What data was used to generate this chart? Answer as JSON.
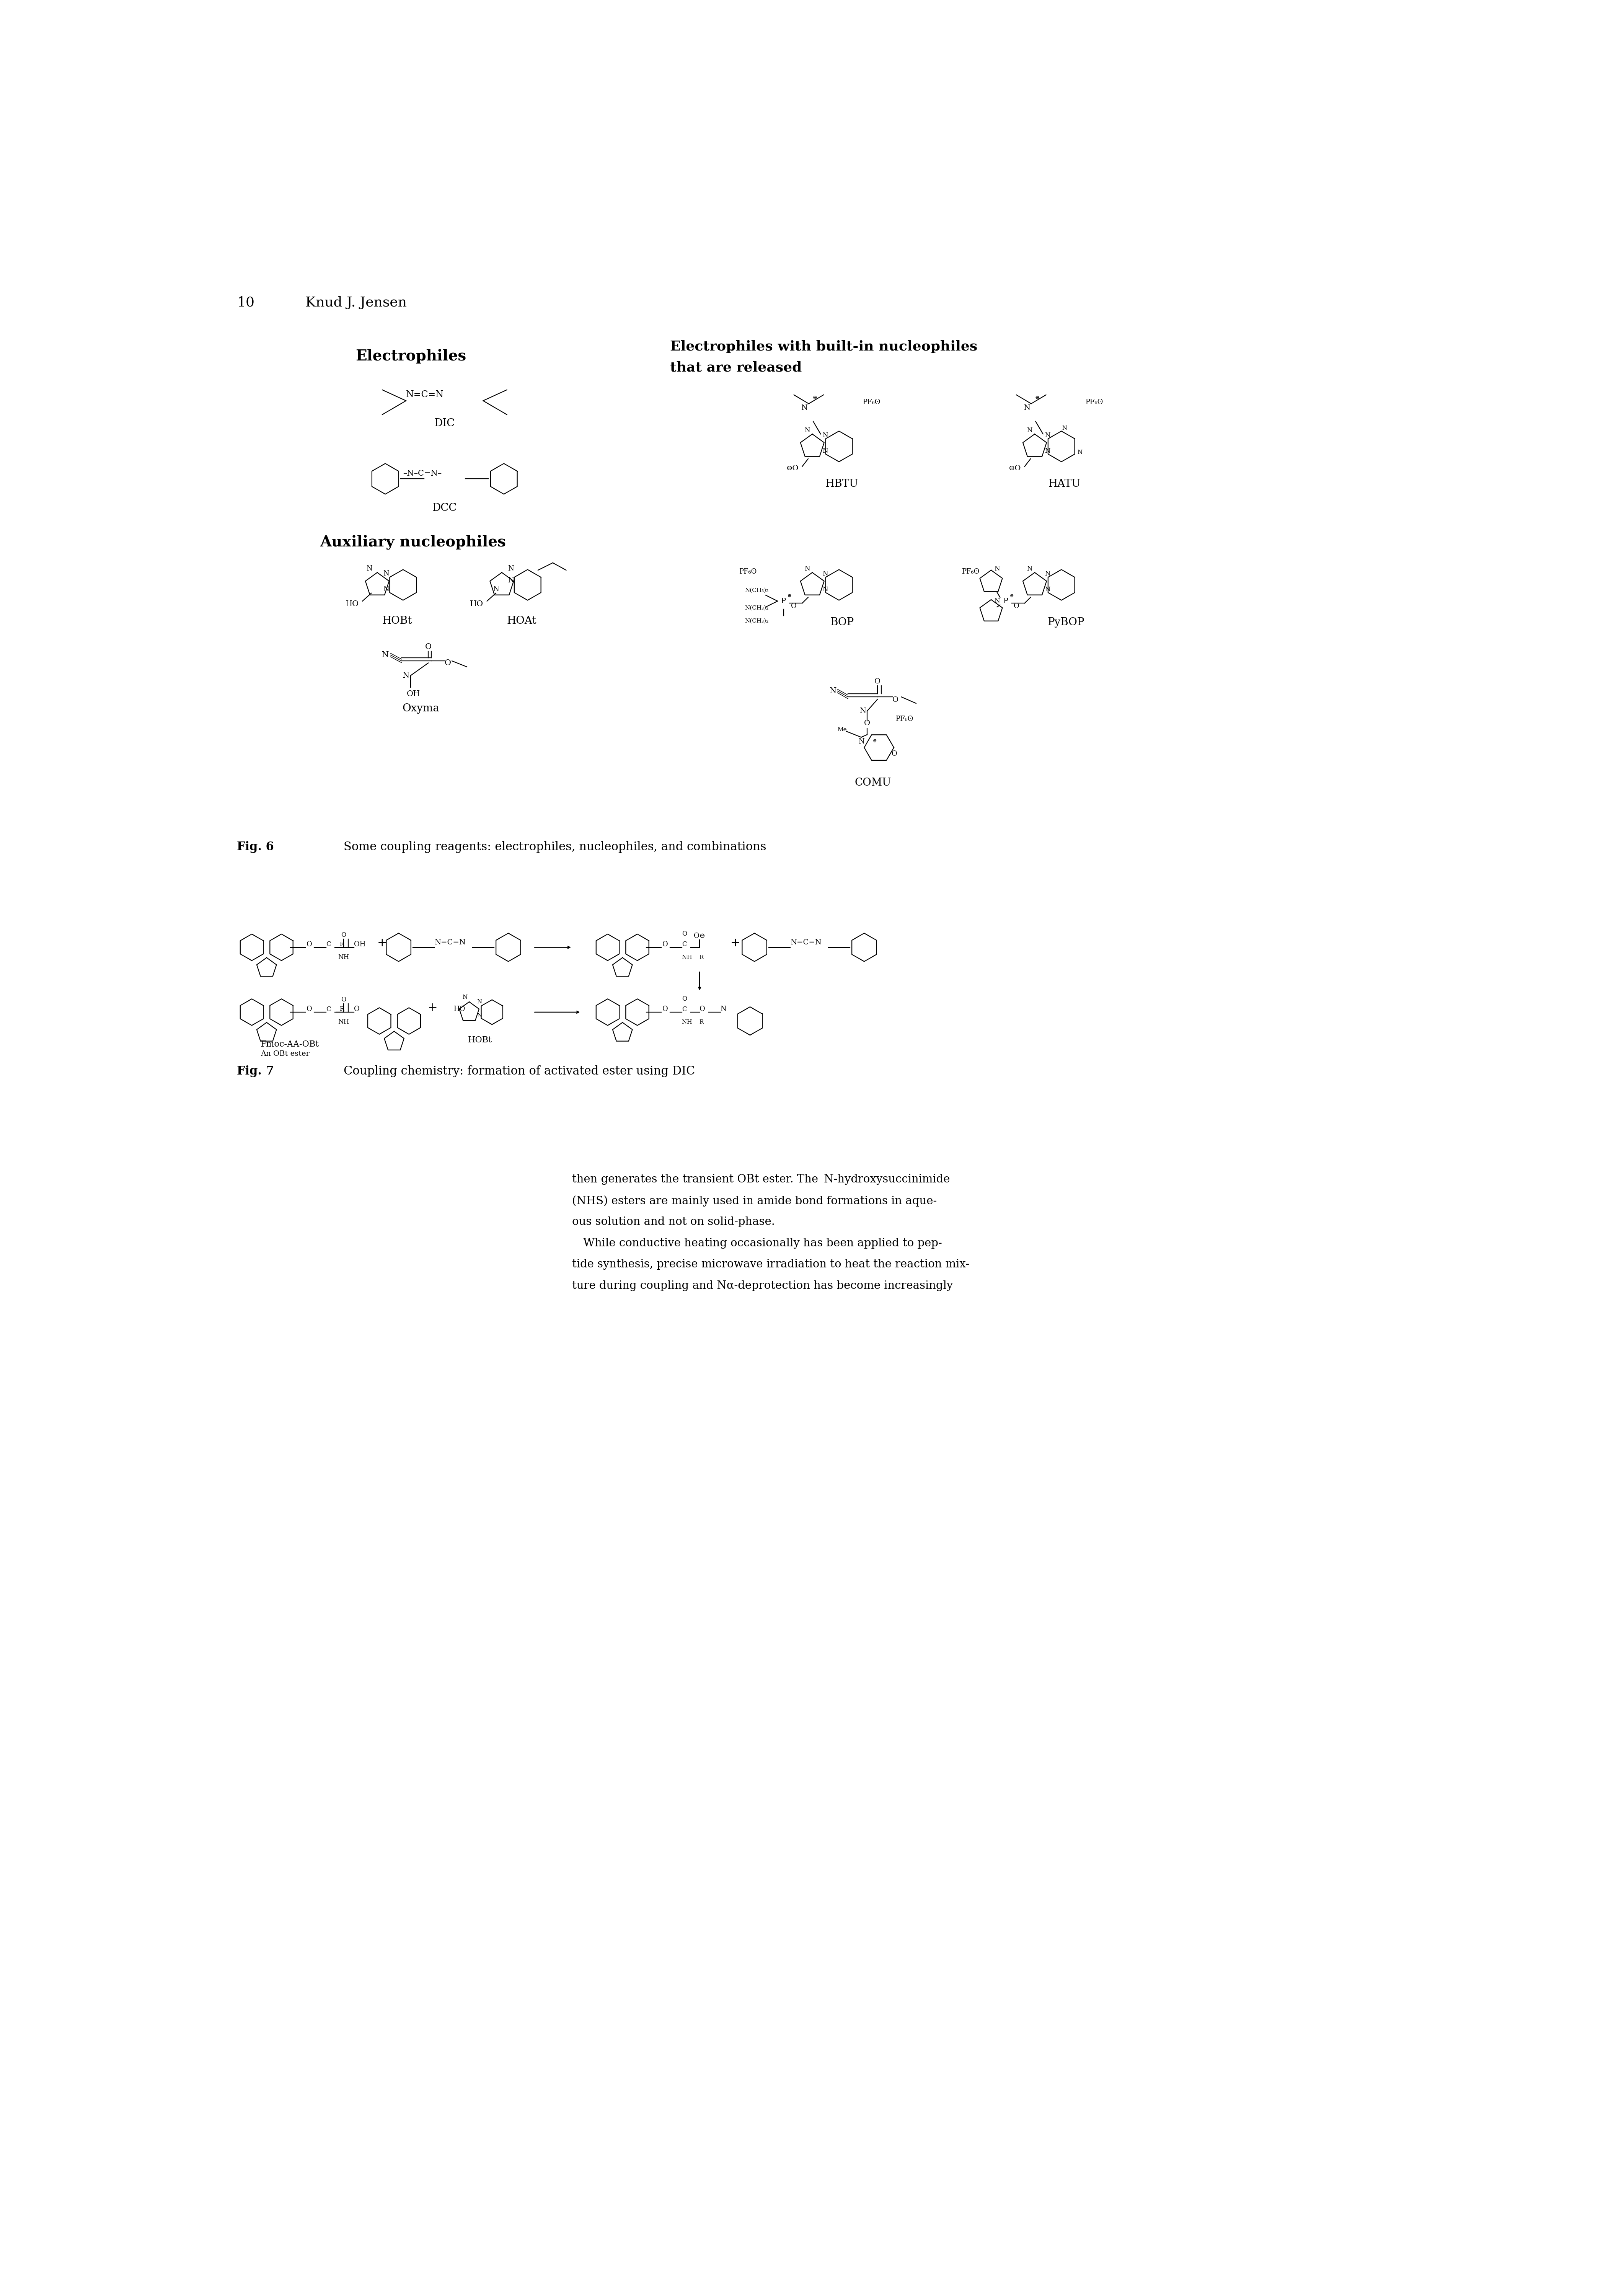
{
  "page_width": 42.1,
  "page_height": 60.0,
  "bg_color": "#ffffff",
  "header_number": "10",
  "header_author": "Knud J. Jensen",
  "fig6_caption_bold": "Fig. 6",
  "fig6_caption_normal": "Some coupling reagents: electrophiles, nucleophiles, and combinations",
  "fig7_caption_bold": "Fig. 7",
  "fig7_caption_normal": "Coupling chemistry: formation of activated ester using DIC",
  "section1_title": "Electrophiles",
  "section2_line1": "Electrophiles with built-in nucleophiles",
  "section2_line2": "that are released",
  "section3_title": "Auxiliary nucleophiles",
  "body_text_lines": [
    "then generates the transient OBt ester. The  N-hydroxysuccinimide",
    "(NHS) esters are mainly used in amide bond formations in aque-",
    "ous solution and not on solid-phase.",
    " While conductive heating occasionally has been applied to pep-",
    "tide synthesis, precise microwave irradiation to heat the reaction mix-",
    "ture during coupling and Nα-deprotection has become increasingly"
  ],
  "font_size_header": 26,
  "font_size_section": 28,
  "font_size_compound": 20,
  "font_size_body": 21,
  "font_size_caption": 22,
  "lw": 1.6
}
